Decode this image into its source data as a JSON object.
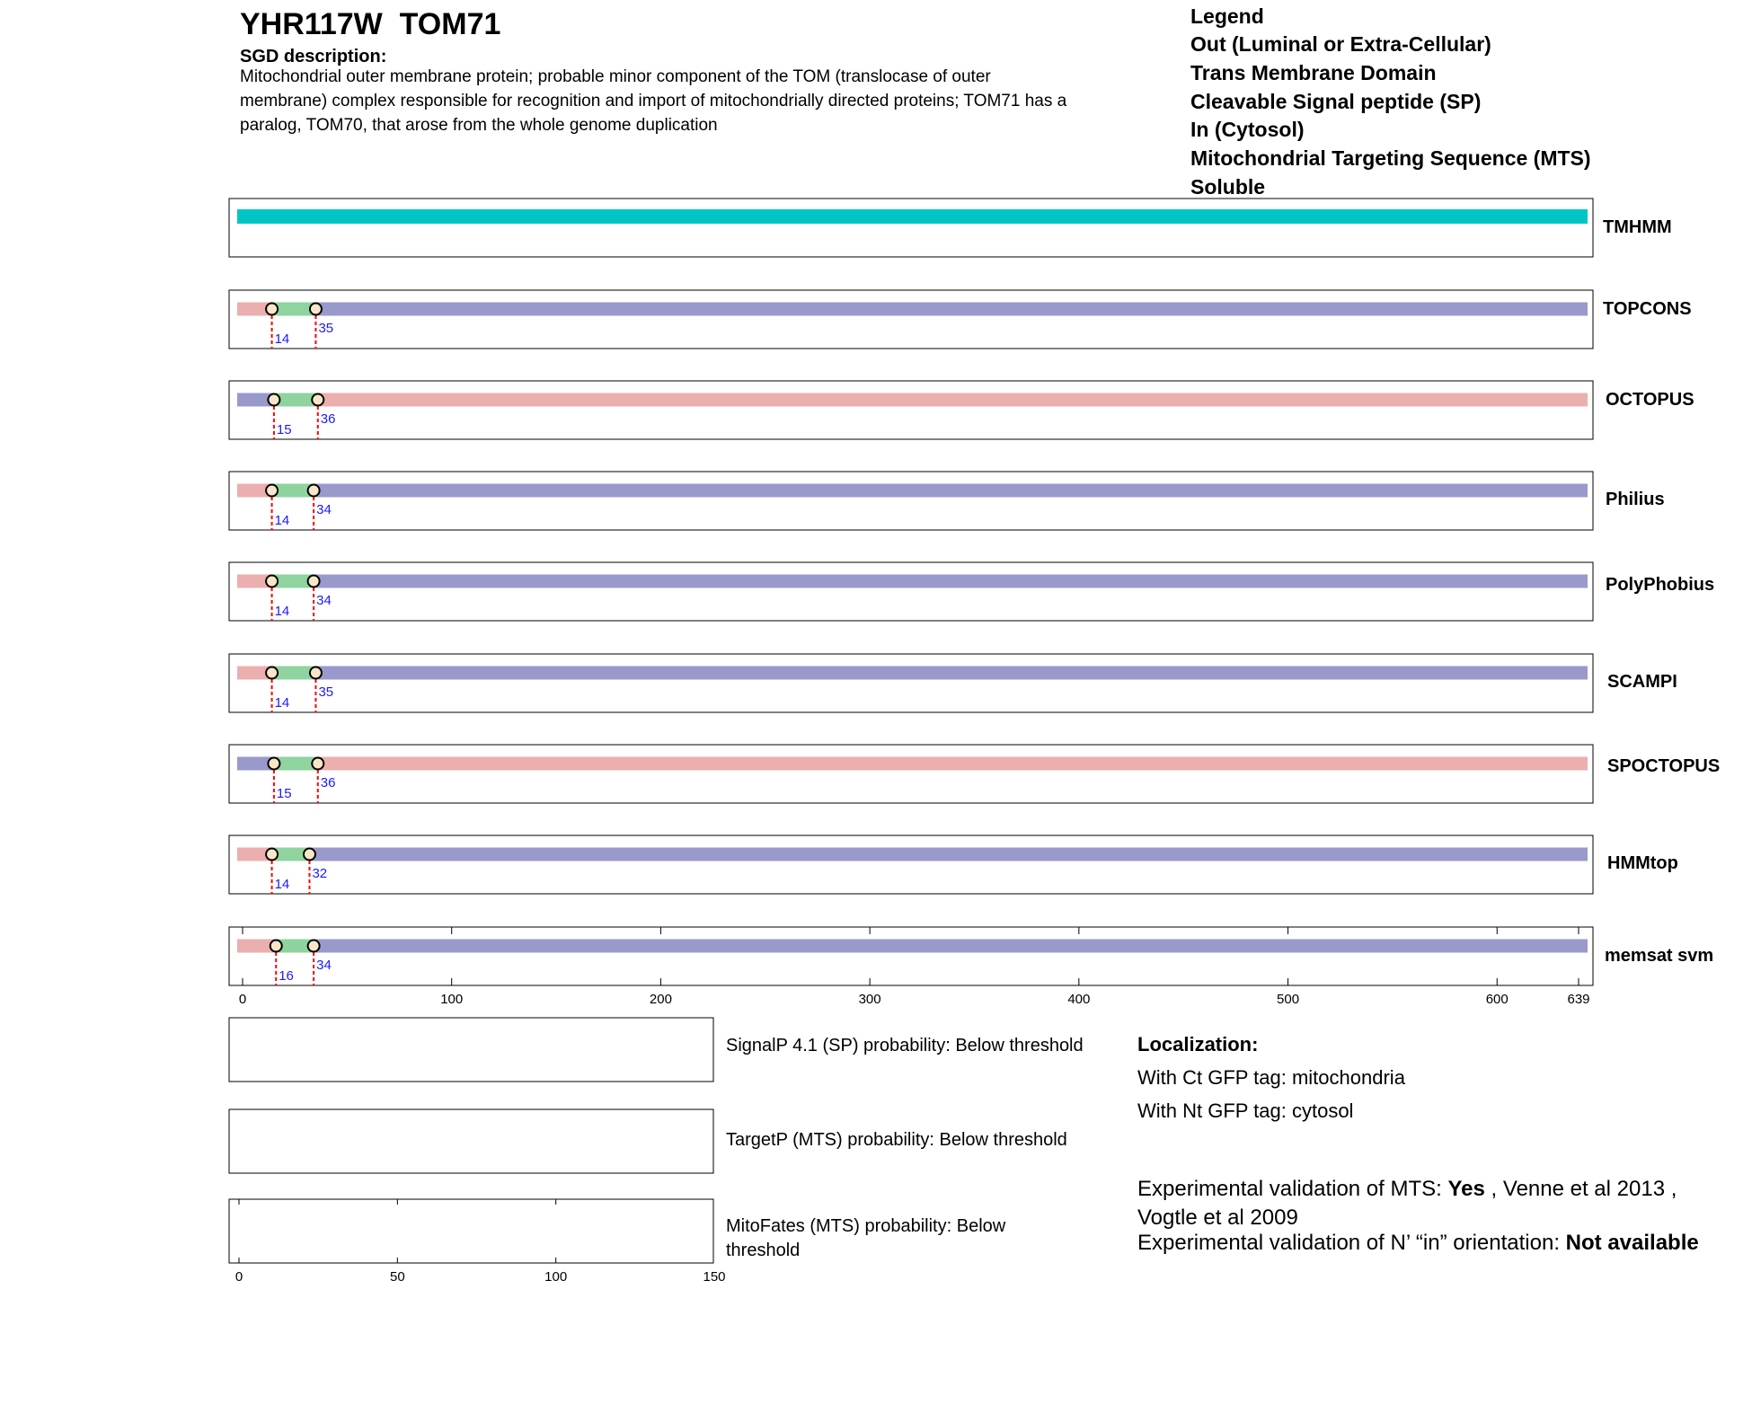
{
  "header": {
    "gene": "YHR117W",
    "name": "TOM71",
    "sgd_heading": "SGD description:",
    "sgd_lines": [
      "Mitochondrial outer membrane protein; probable minor component of the TOM (translocase of outer",
      "membrane) complex responsible for recognition and import of mitochondrially directed proteins; TOM71 has a",
      "paralog, TOM70, that arose from the whole genome duplication"
    ]
  },
  "legend": {
    "title": "Legend",
    "items": [
      {
        "label": "Out (Luminal or Extra-Cellular)",
        "color": "#9999cc"
      },
      {
        "label": "Trans Membrane Domain",
        "color": "#8fd39e"
      },
      {
        "label": "Cleavable Signal peptide (SP)",
        "color": "#b3d3f0"
      },
      {
        "label": "In (Cytosol)",
        "color": "#ebafaf"
      },
      {
        "label": "Mitochondrial Targeting Sequence (MTS)",
        "color": "#e6ac1f"
      },
      {
        "label": "Soluble",
        "color": "#00c5c5"
      }
    ]
  },
  "chart_data": [
    {
      "type": "topology-tracks",
      "xlim": [
        0,
        639
      ],
      "ticks": [
        0,
        100,
        200,
        300,
        400,
        500,
        600,
        639
      ],
      "protein_length": 639,
      "tracks": [
        {
          "name": "TMHMM",
          "segments": [
            {
              "start": 0,
              "end": 639,
              "class": "Soluble"
            }
          ],
          "boundaries": []
        },
        {
          "name": "TOPCONS",
          "segments": [
            {
              "start": 0,
              "end": 14,
              "class": "In"
            },
            {
              "start": 14,
              "end": 35,
              "class": "TM"
            },
            {
              "start": 35,
              "end": 639,
              "class": "Out"
            }
          ],
          "boundaries": [
            14,
            35
          ]
        },
        {
          "name": "OCTOPUS",
          "segments": [
            {
              "start": 0,
              "end": 15,
              "class": "Out"
            },
            {
              "start": 15,
              "end": 36,
              "class": "TM"
            },
            {
              "start": 36,
              "end": 639,
              "class": "In"
            }
          ],
          "boundaries": [
            15,
            36
          ]
        },
        {
          "name": "Philius",
          "segments": [
            {
              "start": 0,
              "end": 14,
              "class": "In"
            },
            {
              "start": 14,
              "end": 34,
              "class": "TM"
            },
            {
              "start": 34,
              "end": 639,
              "class": "Out"
            }
          ],
          "boundaries": [
            14,
            34
          ]
        },
        {
          "name": "PolyPhobius",
          "segments": [
            {
              "start": 0,
              "end": 14,
              "class": "In"
            },
            {
              "start": 14,
              "end": 34,
              "class": "TM"
            },
            {
              "start": 34,
              "end": 639,
              "class": "Out"
            }
          ],
          "boundaries": [
            14,
            34
          ]
        },
        {
          "name": "SCAMPI",
          "segments": [
            {
              "start": 0,
              "end": 14,
              "class": "In"
            },
            {
              "start": 14,
              "end": 35,
              "class": "TM"
            },
            {
              "start": 35,
              "end": 639,
              "class": "Out"
            }
          ],
          "boundaries": [
            14,
            35
          ]
        },
        {
          "name": "SPOCTOPUS",
          "segments": [
            {
              "start": 0,
              "end": 15,
              "class": "Out"
            },
            {
              "start": 15,
              "end": 36,
              "class": "TM"
            },
            {
              "start": 36,
              "end": 639,
              "class": "In"
            }
          ],
          "boundaries": [
            15,
            36
          ]
        },
        {
          "name": "HMMtop",
          "segments": [
            {
              "start": 0,
              "end": 14,
              "class": "In"
            },
            {
              "start": 14,
              "end": 32,
              "class": "TM"
            },
            {
              "start": 32,
              "end": 639,
              "class": "Out"
            }
          ],
          "boundaries": [
            14,
            32
          ]
        },
        {
          "name": "memsat svm",
          "segments": [
            {
              "start": 0,
              "end": 16,
              "class": "In"
            },
            {
              "start": 16,
              "end": 34,
              "class": "TM"
            },
            {
              "start": 34,
              "end": 639,
              "class": "Out"
            }
          ],
          "boundaries": [
            16,
            34
          ]
        }
      ]
    },
    {
      "type": "probability-panels",
      "xlim": [
        0,
        150
      ],
      "ticks": [
        0,
        50,
        100,
        150
      ],
      "panels": [
        {
          "lines": [
            "SignalP 4.1 (SP) probability: Below threshold"
          ]
        },
        {
          "lines": [
            "TargetP (MTS) probability: Below threshold"
          ]
        },
        {
          "lines": [
            "MitoFates (MTS) probability: Below",
            "threshold"
          ]
        }
      ]
    }
  ],
  "localization": {
    "heading": "Localization:",
    "ct": "With Ct GFP tag: mitochondria",
    "nt": "With Nt GFP tag: cytosol"
  },
  "experimental": {
    "mts_prefix": "Experimental validation of MTS: ",
    "mts_value": "Yes",
    "mts_refs": " , Venne et al 2013 , Vogtle et al 2009",
    "orient_prefix": "Experimental validation of N’ “in” orientation: ",
    "orient_value": "Not available"
  }
}
